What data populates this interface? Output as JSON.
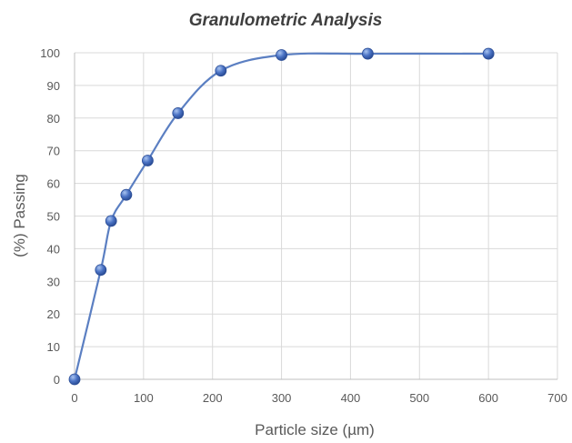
{
  "chart_data": {
    "type": "scatter",
    "title": "Granulometric Analysis",
    "xlabel": "Particle size (µm)",
    "ylabel": "(%) Passing",
    "xlim": [
      0,
      700
    ],
    "ylim": [
      0,
      100
    ],
    "x_ticks": [
      0,
      100,
      200,
      300,
      400,
      500,
      600,
      700
    ],
    "y_ticks": [
      0,
      10,
      20,
      30,
      40,
      50,
      60,
      70,
      80,
      90,
      100
    ],
    "grid": true,
    "smooth": true,
    "series": [
      {
        "x": [
          0,
          38,
          53,
          75,
          106,
          150,
          212,
          300,
          425,
          600
        ],
        "y": [
          0,
          33.5,
          48.5,
          56.5,
          67,
          81.5,
          94.5,
          99.3,
          99.7,
          99.7
        ]
      }
    ],
    "colors": {
      "line": "#5b7fc2",
      "marker": "#4a72c4",
      "grid": "#d9d9d9",
      "text": "#595959",
      "title": "#3f3f3f"
    }
  }
}
